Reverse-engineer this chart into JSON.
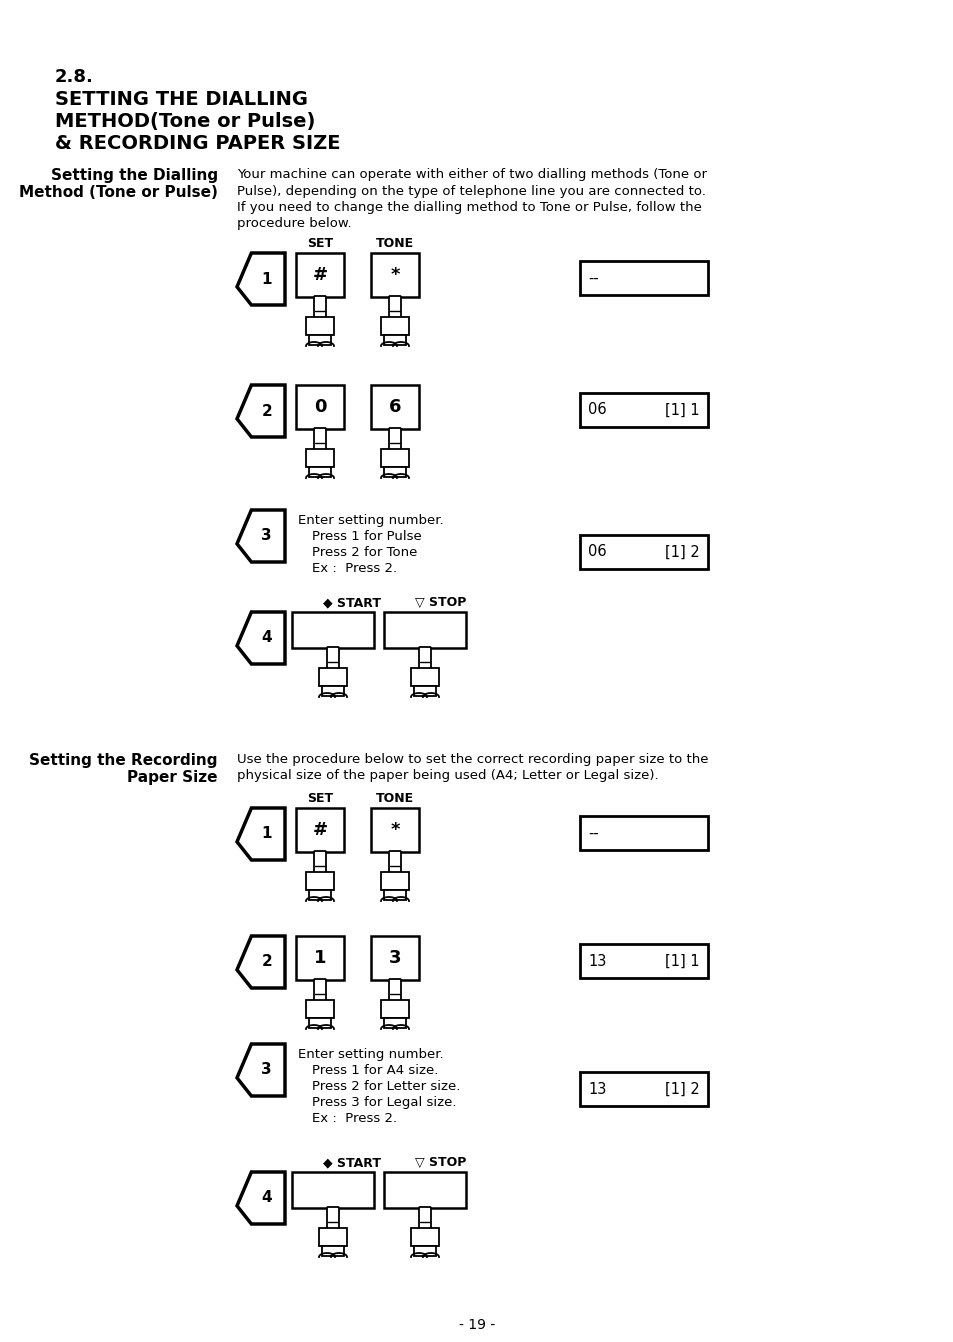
{
  "title_section": "2.8.",
  "main_title_line1": "SETTING THE DIALLING",
  "main_title_line2": "METHOD(Tone or Pulse)",
  "main_title_line3": "& RECORDING PAPER SIZE",
  "s1_head1": "Setting the Dialling",
  "s1_head2": "Method (Tone or Pulse)",
  "s1_desc": "Your machine can operate with either of two dialling methods (Tone or\nPulse), depending on the type of telephone line you are connected to.\nIf you need to change the dialling method to Tone or Pulse, follow the\nprocedure below.",
  "s2_head1": "Setting the Recording",
  "s2_head2": "Paper Size",
  "s2_desc": "Use the procedure below to set the correct recording paper size to the\nphysical size of the paper being used (A4; Letter or Legal size).",
  "page_number": "- 19 -",
  "bg": "#ffffff"
}
